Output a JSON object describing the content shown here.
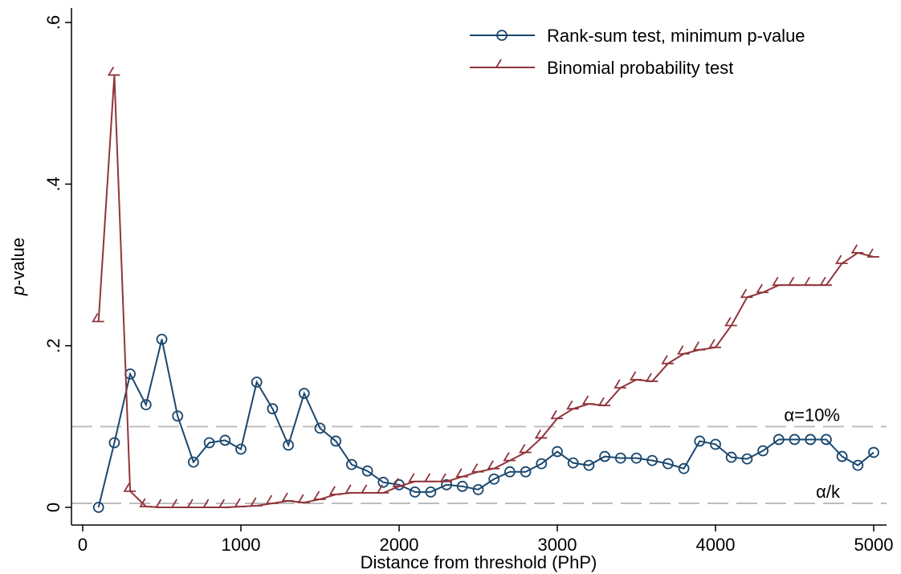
{
  "chart_data": {
    "type": "line",
    "xlabel": "Distance from threshold (PhP)",
    "ylabel_italic": "p",
    "ylabel_rest": "-value",
    "xlim": [
      0,
      5000
    ],
    "ylim": [
      0,
      0.6
    ],
    "xticks": [
      0,
      1000,
      2000,
      3000,
      4000,
      5000
    ],
    "xtick_labels": [
      "0",
      "1000",
      "2000",
      "3000",
      "4000",
      "5000"
    ],
    "yticks": [
      0,
      0.2,
      0.4,
      0.6
    ],
    "ytick_labels": [
      "0",
      ".2",
      ".4",
      ".6"
    ],
    "grid": false,
    "legend_position": "top-right",
    "reference_lines": [
      {
        "y": 0.1,
        "label": "α=10%",
        "color": "#bdbdbd"
      },
      {
        "y": 0.005,
        "label": "α/k",
        "color": "#bdbdbd"
      }
    ],
    "series": [
      {
        "name": "Rank-sum test, minimum p-value",
        "color": "#1a476f",
        "marker": "circle",
        "x": [
          100,
          200,
          300,
          400,
          500,
          600,
          700,
          800,
          900,
          1000,
          1100,
          1200,
          1300,
          1400,
          1500,
          1600,
          1700,
          1800,
          1900,
          2000,
          2100,
          2200,
          2300,
          2400,
          2500,
          2600,
          2700,
          2800,
          2900,
          3000,
          3100,
          3200,
          3300,
          3400,
          3500,
          3600,
          3700,
          3800,
          3900,
          4000,
          4100,
          4200,
          4300,
          4400,
          4500,
          4600,
          4700,
          4800,
          4900,
          5000
        ],
        "y": [
          0.0,
          0.08,
          0.165,
          0.127,
          0.208,
          0.113,
          0.056,
          0.08,
          0.083,
          0.072,
          0.155,
          0.122,
          0.077,
          0.141,
          0.098,
          0.082,
          0.053,
          0.045,
          0.031,
          0.028,
          0.019,
          0.019,
          0.028,
          0.026,
          0.022,
          0.035,
          0.044,
          0.044,
          0.054,
          0.069,
          0.055,
          0.052,
          0.063,
          0.061,
          0.061,
          0.058,
          0.054,
          0.048,
          0.082,
          0.078,
          0.062,
          0.06,
          0.07,
          0.084,
          0.084,
          0.084,
          0.084,
          0.063,
          0.052,
          0.068
        ]
      },
      {
        "name": "Binomial probability test",
        "color": "#90353b",
        "marker": "wedge",
        "x": [
          100,
          200,
          300,
          400,
          500,
          600,
          700,
          800,
          900,
          1000,
          1100,
          1200,
          1300,
          1400,
          1500,
          1600,
          1700,
          1800,
          1900,
          2000,
          2100,
          2200,
          2300,
          2400,
          2500,
          2600,
          2700,
          2800,
          2900,
          3000,
          3100,
          3200,
          3300,
          3400,
          3500,
          3600,
          3700,
          3800,
          3900,
          4000,
          4100,
          4200,
          4300,
          4400,
          4500,
          4600,
          4700,
          4800,
          4900,
          5000
        ],
        "y": [
          0.23,
          0.535,
          0.02,
          0.001,
          0.0,
          0.0,
          0.0,
          0.0,
          0.0,
          0.001,
          0.002,
          0.005,
          0.008,
          0.006,
          0.01,
          0.016,
          0.018,
          0.018,
          0.018,
          0.026,
          0.032,
          0.032,
          0.032,
          0.038,
          0.044,
          0.048,
          0.058,
          0.068,
          0.086,
          0.11,
          0.122,
          0.128,
          0.126,
          0.148,
          0.158,
          0.156,
          0.178,
          0.19,
          0.195,
          0.198,
          0.225,
          0.26,
          0.266,
          0.275,
          0.275,
          0.275,
          0.275,
          0.302,
          0.315,
          0.31
        ]
      }
    ]
  }
}
